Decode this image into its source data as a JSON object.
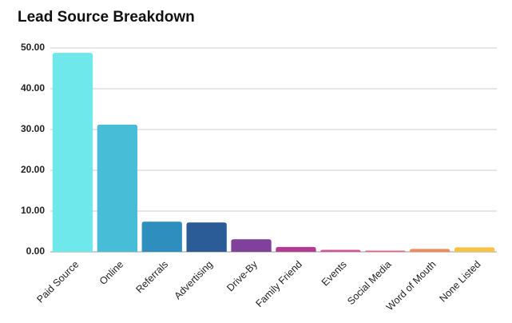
{
  "chart_data": {
    "type": "bar",
    "title": "Lead Source Breakdown",
    "categories": [
      "Paid Source",
      "Online",
      "Referrals",
      "Advertising",
      "Drive-By",
      "Family Friend",
      "Events",
      "Social Media",
      "Word of Mouth",
      "None Listed"
    ],
    "values": [
      48.8,
      31.2,
      7.4,
      7.2,
      3.1,
      1.2,
      0.5,
      0.3,
      0.7,
      1.1
    ],
    "colors": [
      "#6ee8ea",
      "#48bdd8",
      "#2e8fbf",
      "#2b5c98",
      "#80419a",
      "#b33b90",
      "#d65392",
      "#e9607c",
      "#ef8a5b",
      "#f6c344"
    ],
    "ylim": [
      0,
      50
    ],
    "yticks": [
      {
        "value": 0,
        "label": "0.00"
      },
      {
        "value": 10,
        "label": "10.00"
      },
      {
        "value": 20,
        "label": "20.00"
      },
      {
        "value": 30,
        "label": "30.00"
      },
      {
        "value": 40,
        "label": "40.00"
      },
      {
        "value": 50,
        "label": "50.00"
      }
    ],
    "grid": true
  }
}
